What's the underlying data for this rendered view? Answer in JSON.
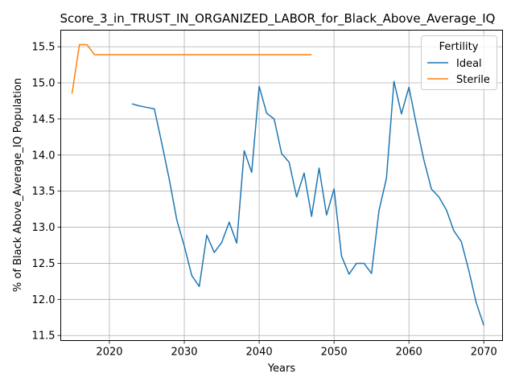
{
  "chart_data": {
    "type": "line",
    "title": "Score_3_in_TRUST_IN_ORGANIZED_LABOR_for_Black_Above_Average_IQ",
    "xlabel": "Years",
    "ylabel": "% of Black Above_Average_IQ Population",
    "xlim": [
      2013.5,
      2072.5
    ],
    "ylim": [
      11.43,
      15.73
    ],
    "xticks": [
      2020,
      2030,
      2040,
      2050,
      2060,
      2070
    ],
    "yticks": [
      11.5,
      12.0,
      12.5,
      13.0,
      13.5,
      14.0,
      14.5,
      15.0,
      15.5
    ],
    "grid": true,
    "legend": {
      "title": "Fertility",
      "position": "top-right"
    },
    "series": [
      {
        "name": "Ideal",
        "color": "#1f77b4",
        "points": [
          [
            2023,
            14.71
          ],
          [
            2024,
            14.68
          ],
          [
            2025,
            14.66
          ],
          [
            2026,
            14.64
          ],
          [
            2027,
            14.16
          ],
          [
            2028,
            13.66
          ],
          [
            2029,
            13.1
          ],
          [
            2030,
            12.74
          ],
          [
            2031,
            12.33
          ],
          [
            2032,
            12.18
          ],
          [
            2033,
            12.89
          ],
          [
            2034,
            12.65
          ],
          [
            2035,
            12.79
          ],
          [
            2036,
            13.07
          ],
          [
            2037,
            12.78
          ],
          [
            2038,
            14.06
          ],
          [
            2039,
            13.76
          ],
          [
            2040,
            14.95
          ],
          [
            2041,
            14.58
          ],
          [
            2042,
            14.5
          ],
          [
            2043,
            14.02
          ],
          [
            2044,
            13.9
          ],
          [
            2045,
            13.42
          ],
          [
            2046,
            13.75
          ],
          [
            2047,
            13.15
          ],
          [
            2048,
            13.82
          ],
          [
            2049,
            13.17
          ],
          [
            2050,
            13.53
          ],
          [
            2051,
            12.6
          ],
          [
            2052,
            12.35
          ],
          [
            2053,
            12.5
          ],
          [
            2054,
            12.5
          ],
          [
            2055,
            12.36
          ],
          [
            2056,
            13.23
          ],
          [
            2057,
            13.68
          ],
          [
            2058,
            15.02
          ],
          [
            2059,
            14.57
          ],
          [
            2060,
            14.94
          ],
          [
            2061,
            14.42
          ],
          [
            2062,
            13.93
          ],
          [
            2063,
            13.53
          ],
          [
            2064,
            13.42
          ],
          [
            2065,
            13.24
          ],
          [
            2066,
            12.95
          ],
          [
            2067,
            12.8
          ],
          [
            2068,
            12.4
          ],
          [
            2069,
            11.95
          ],
          [
            2070,
            11.64
          ]
        ]
      },
      {
        "name": "Sterile",
        "color": "#ff7f0e",
        "points": [
          [
            2015,
            14.85
          ],
          [
            2016,
            15.53
          ],
          [
            2017,
            15.53
          ],
          [
            2018,
            15.39
          ],
          [
            2019,
            15.39
          ],
          [
            2020,
            15.39
          ],
          [
            2025,
            15.39
          ],
          [
            2030,
            15.39
          ],
          [
            2035,
            15.39
          ],
          [
            2040,
            15.39
          ],
          [
            2045,
            15.39
          ],
          [
            2047,
            15.39
          ]
        ]
      }
    ]
  }
}
